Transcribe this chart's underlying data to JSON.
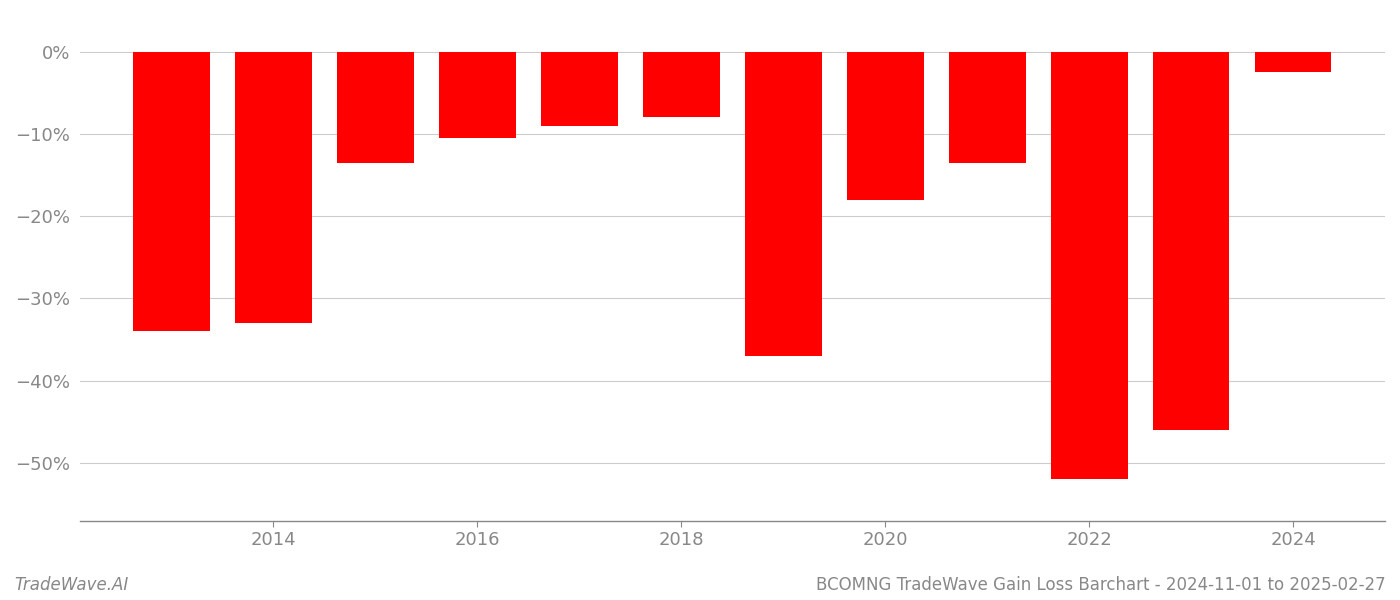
{
  "years": [
    2013,
    2014,
    2015,
    2016,
    2017,
    2018,
    2019,
    2020,
    2021,
    2022,
    2023,
    2024
  ],
  "values": [
    -34.0,
    -33.0,
    -13.5,
    -10.5,
    -9.0,
    -8.0,
    -37.0,
    -18.0,
    -13.5,
    -52.0,
    -46.0,
    -2.5
  ],
  "bar_color": "#ff0000",
  "title": "BCOMNG TradeWave Gain Loss Barchart - 2024-11-01 to 2025-02-27",
  "watermark": "TradeWave.AI",
  "ylim": [
    -57,
    3
  ],
  "yticks": [
    0,
    -10,
    -20,
    -30,
    -40,
    -50
  ],
  "ytick_labels": [
    "0%",
    "−10%",
    "−20%",
    "−30%",
    "−40%",
    "−50%"
  ],
  "xtick_positions": [
    2014,
    2016,
    2018,
    2020,
    2022,
    2024
  ],
  "xtick_labels": [
    "2014",
    "2016",
    "2018",
    "2020",
    "2022",
    "2024"
  ],
  "background_color": "#ffffff",
  "grid_color": "#cccccc",
  "axis_color": "#888888",
  "bar_width": 0.75,
  "title_fontsize": 12,
  "tick_fontsize": 13,
  "watermark_fontsize": 12
}
